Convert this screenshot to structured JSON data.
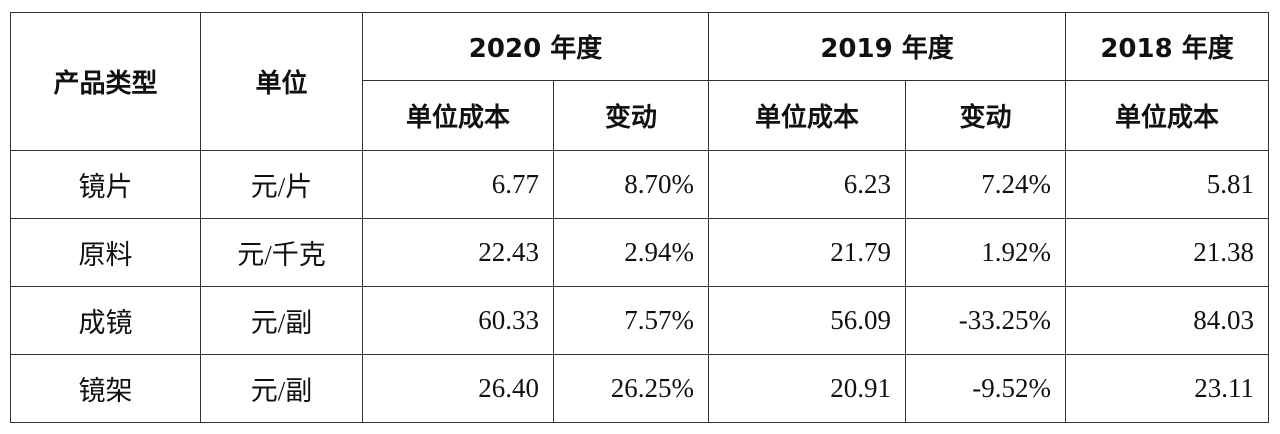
{
  "table": {
    "header": {
      "groups": [
        "产品类型",
        "单位",
        "2020 年度",
        "2019 年度",
        "2018 年度"
      ],
      "subs": [
        "单位成本",
        "变动",
        "单位成本",
        "变动",
        "单位成本"
      ]
    },
    "rows": [
      [
        "镜片",
        "元/片",
        "6.77",
        "8.70%",
        "6.23",
        "7.24%",
        "5.81"
      ],
      [
        "原料",
        "元/千克",
        "22.43",
        "2.94%",
        "21.79",
        "1.92%",
        "21.38"
      ],
      [
        "成镜",
        "元/副",
        "60.33",
        "7.57%",
        "56.09",
        "-33.25%",
        "84.03"
      ],
      [
        "镜架",
        "元/副",
        "26.40",
        "26.25%",
        "20.91",
        "-9.52%",
        "23.11"
      ]
    ]
  }
}
